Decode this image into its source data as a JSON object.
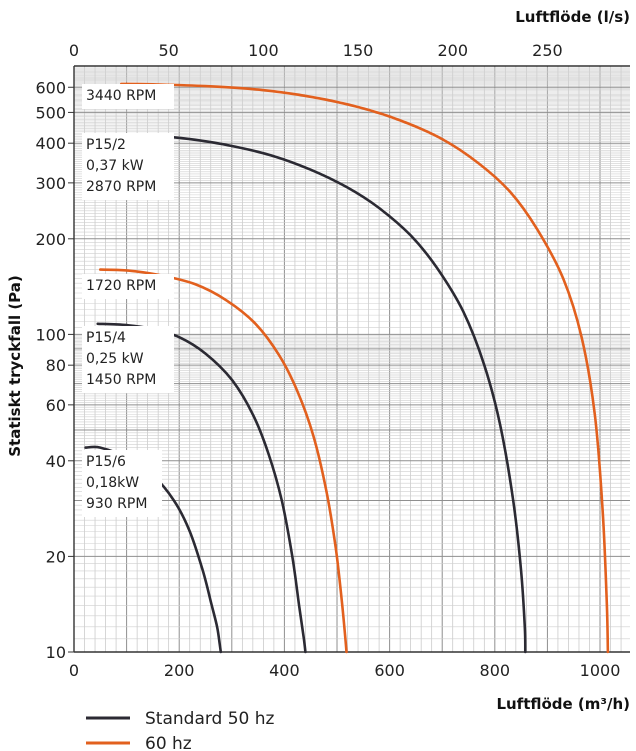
{
  "chart_data": {
    "type": "line",
    "title": "",
    "x_top": {
      "label": "Luftflöde (l/s)",
      "ticks": [
        0,
        50,
        100,
        150,
        200,
        250
      ],
      "range": [
        0,
        293.6
      ]
    },
    "x_bottom": {
      "label": "Luftflöde (m³/h)",
      "ticks": [
        0,
        200,
        400,
        600,
        800,
        1000
      ],
      "range": [
        0,
        1057
      ]
    },
    "y": {
      "label": "Statiskt tryckfall (Pa)",
      "scale": "log",
      "range": [
        10,
        700
      ],
      "ticks": [
        10,
        20,
        40,
        60,
        80,
        100,
        200,
        300,
        400,
        500,
        600
      ]
    },
    "grid": true,
    "legend": {
      "placement": "bottom-left",
      "entries": [
        {
          "label": "Standard 50 hz",
          "color": "#2b2a33"
        },
        {
          "label": "60 hz",
          "color": "#e2601e"
        }
      ]
    },
    "series": [
      {
        "group": "P15/2",
        "freq": "50 hz",
        "color": "#2b2a33",
        "x": [
          80,
          150,
          220,
          300,
          380,
          450,
          520,
          580,
          640,
          690,
          740,
          780,
          810,
          835,
          850,
          857,
          858
        ],
        "y": [
          425,
          422,
          412,
          392,
          364,
          330,
          290,
          250,
          205,
          162,
          118,
          80,
          52,
          30,
          18,
          12,
          10
        ]
      },
      {
        "group": "P15/2",
        "freq": "60 hz",
        "color": "#e2601e",
        "x": [
          90,
          150,
          250,
          350,
          450,
          540,
          620,
          700,
          770,
          830,
          880,
          930,
          965,
          990,
          1005,
          1013,
          1015
        ],
        "y": [
          615,
          613,
          605,
          590,
          560,
          520,
          472,
          412,
          345,
          280,
          215,
          150,
          98,
          56,
          28,
          14,
          10
        ]
      },
      {
        "group": "P15/4",
        "freq": "50 hz",
        "color": "#2b2a33",
        "x": [
          45,
          100,
          150,
          200,
          250,
          300,
          340,
          370,
          395,
          415,
          428,
          437,
          440
        ],
        "y": [
          108,
          107,
          104,
          98,
          87,
          72,
          56,
          42,
          30,
          20,
          14,
          11,
          10
        ]
      },
      {
        "group": "P15/4",
        "freq": "60 hz",
        "color": "#e2601e",
        "x": [
          50,
          100,
          160,
          230,
          290,
          345,
          390,
          425,
          455,
          480,
          498,
          510,
          516,
          518
        ],
        "y": [
          160,
          159,
          154,
          144,
          128,
          108,
          86,
          66,
          48,
          32,
          21,
          14,
          11,
          10
        ]
      },
      {
        "group": "P15/6",
        "freq": "50 hz",
        "color": "#2b2a33",
        "x": [
          22,
          50,
          100,
          150,
          190,
          220,
          245,
          262,
          272,
          277,
          279
        ],
        "y": [
          44,
          44,
          41,
          36,
          30,
          24,
          18,
          14,
          12,
          10.6,
          10
        ]
      }
    ],
    "annotations": [
      {
        "id": "rpm-3440",
        "lines": [
          "3440 RPM"
        ]
      },
      {
        "id": "p15-2",
        "lines": [
          "P15/2",
          "0,37 kW",
          "2870 RPM"
        ]
      },
      {
        "id": "rpm-1720",
        "lines": [
          "1720 RPM"
        ]
      },
      {
        "id": "p15-4",
        "lines": [
          "P15/4",
          "0,25 kW",
          "1450 RPM"
        ]
      },
      {
        "id": "p15-6",
        "lines": [
          "P15/6",
          "0,18kW",
          "930 RPM"
        ]
      }
    ]
  }
}
